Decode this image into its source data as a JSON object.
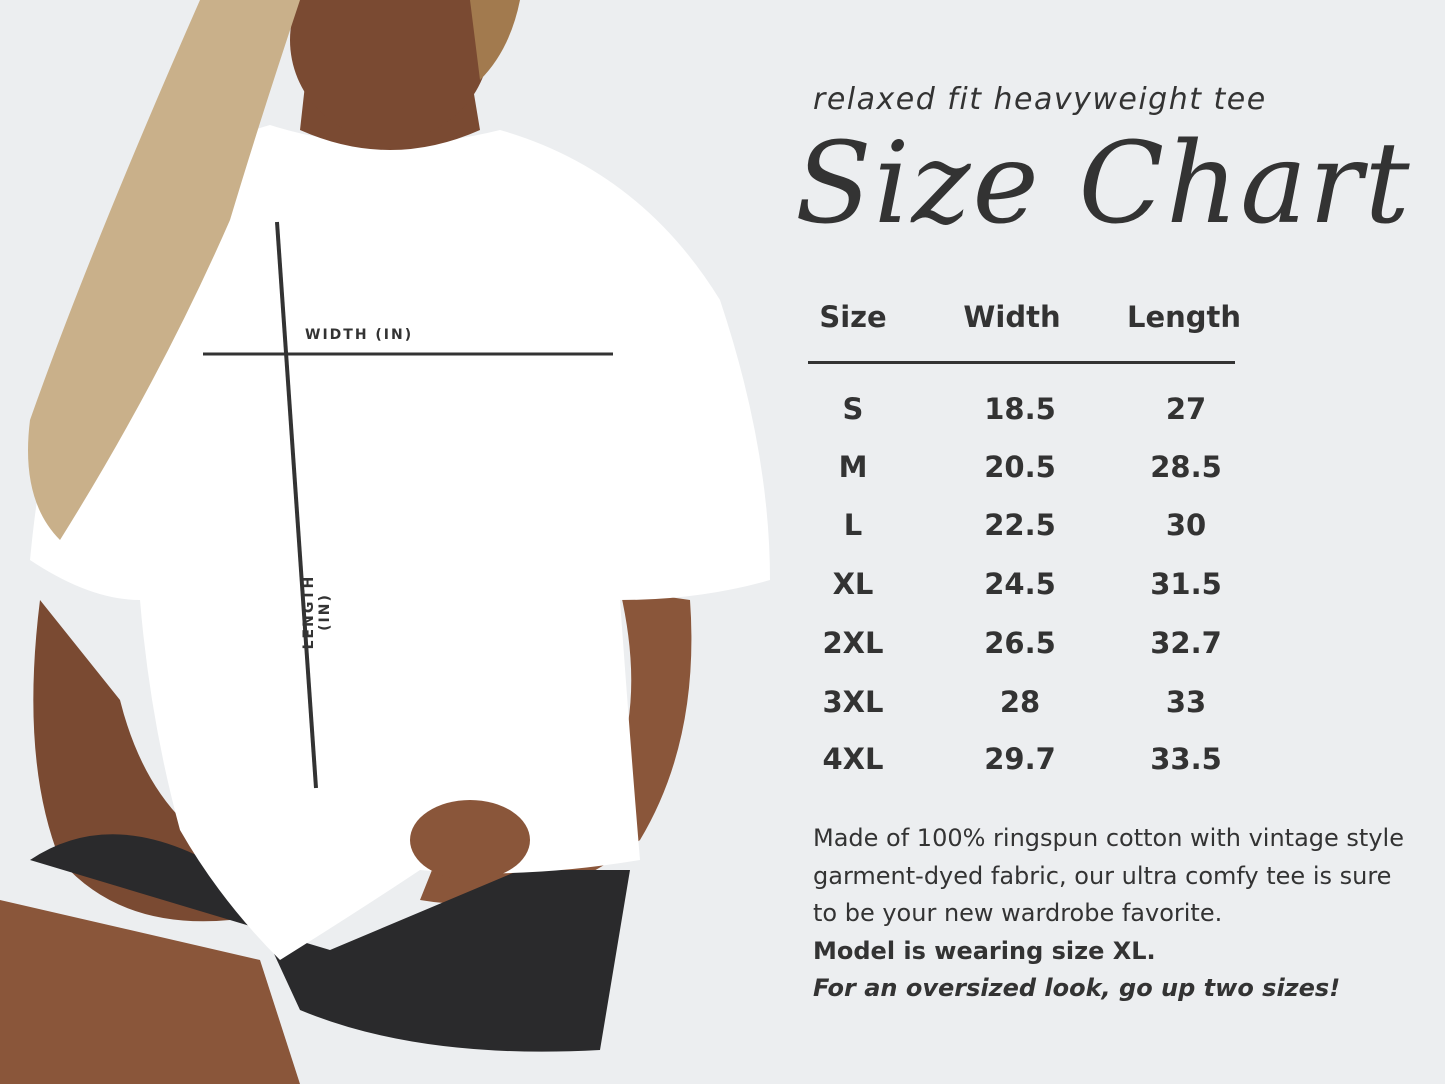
{
  "header": {
    "subtitle": "relaxed fit heavyweight tee",
    "title": "Size Chart"
  },
  "table": {
    "columns": [
      "Size",
      "Width",
      "Length"
    ],
    "rows": [
      [
        "S",
        "18.5",
        "27"
      ],
      [
        "M",
        "20.5",
        "28.5"
      ],
      [
        "L",
        "22.5",
        "30"
      ],
      [
        "XL",
        "24.5",
        "31.5"
      ],
      [
        "2XL",
        "26.5",
        "32.7"
      ],
      [
        "3XL",
        "28",
        "33"
      ],
      [
        "4XL",
        "29.7",
        "33.5"
      ]
    ]
  },
  "photo": {
    "width_label": "WIDTH (IN)",
    "length_label": "LENGTH (IN)"
  },
  "description": {
    "body": "Made of 100% ringspun cotton with vintage style garment-dyed fabric, our ultra comfy tee is sure to be your new wardrobe favorite.",
    "model_note": "Model is wearing size XL.",
    "tip": "For an oversized look, go up two sizes!"
  },
  "colors": {
    "background": "#eceef0",
    "text": "#333333",
    "shirt": "#ffffff",
    "shorts": "#2a2a2c"
  }
}
